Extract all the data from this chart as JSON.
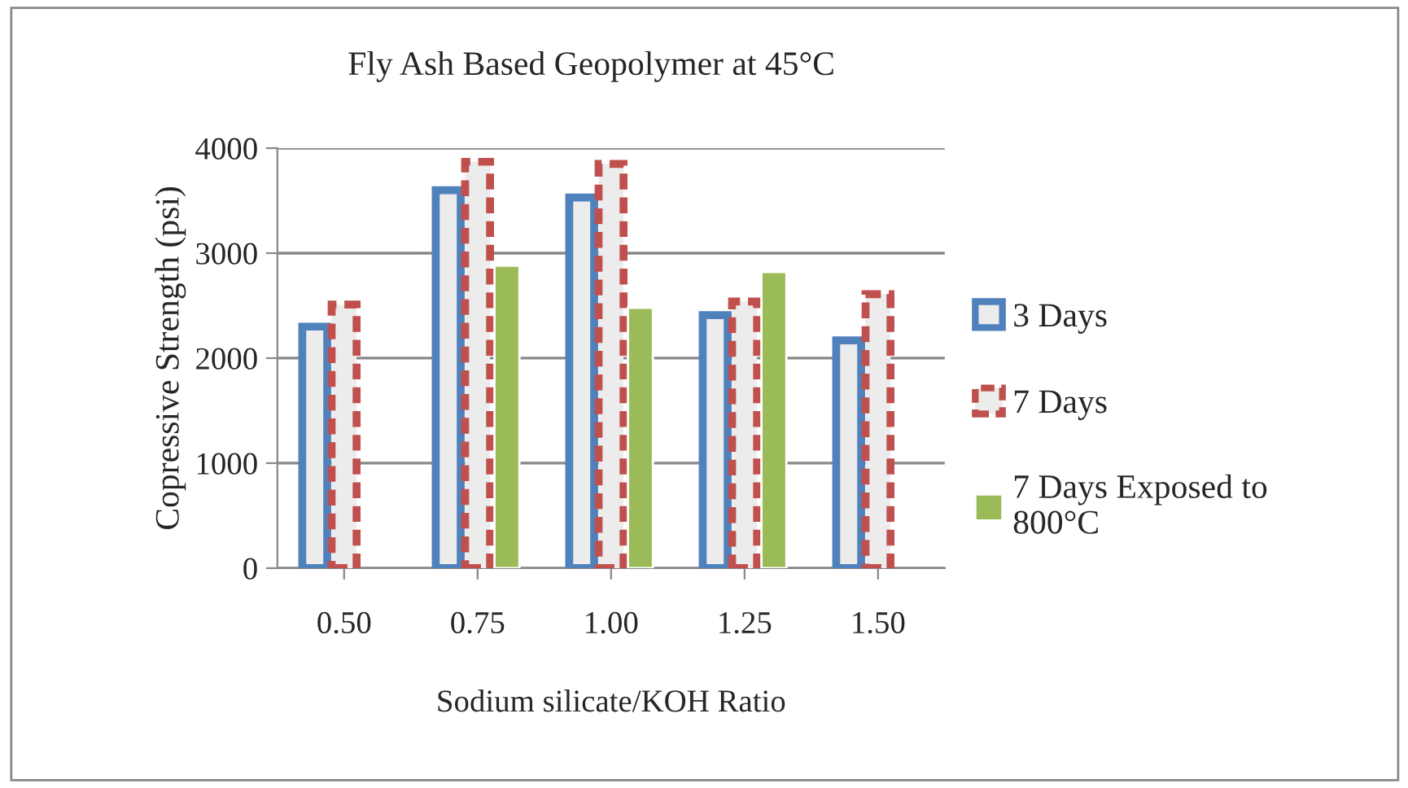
{
  "chart_data": {
    "type": "bar",
    "title": "Fly Ash Based Geopolymer at 45°C",
    "xlabel": "Sodium silicate/KOH Ratio",
    "ylabel": "Copressive Strength (psi)",
    "categories": [
      "0.50",
      "0.75",
      "1.00",
      "1.25",
      "1.50"
    ],
    "series": [
      {
        "name": "3 Days",
        "color": "#4f81bd",
        "line_style": "solid",
        "values": [
          2300,
          3600,
          3530,
          2410,
          2170
        ]
      },
      {
        "name": "7 Days",
        "color": "#c0504d",
        "line_style": "dashed",
        "values": [
          2510,
          3870,
          3850,
          2540,
          2610
        ]
      },
      {
        "name": "7 Days Exposed to 800°C",
        "color": "#9bbb59",
        "values": [
          null,
          2880,
          2480,
          2820,
          null
        ]
      }
    ],
    "ylim": [
      0,
      4000
    ],
    "yticks": [
      0,
      1000,
      2000,
      3000,
      4000
    ],
    "grid": "y",
    "legend": "right"
  }
}
